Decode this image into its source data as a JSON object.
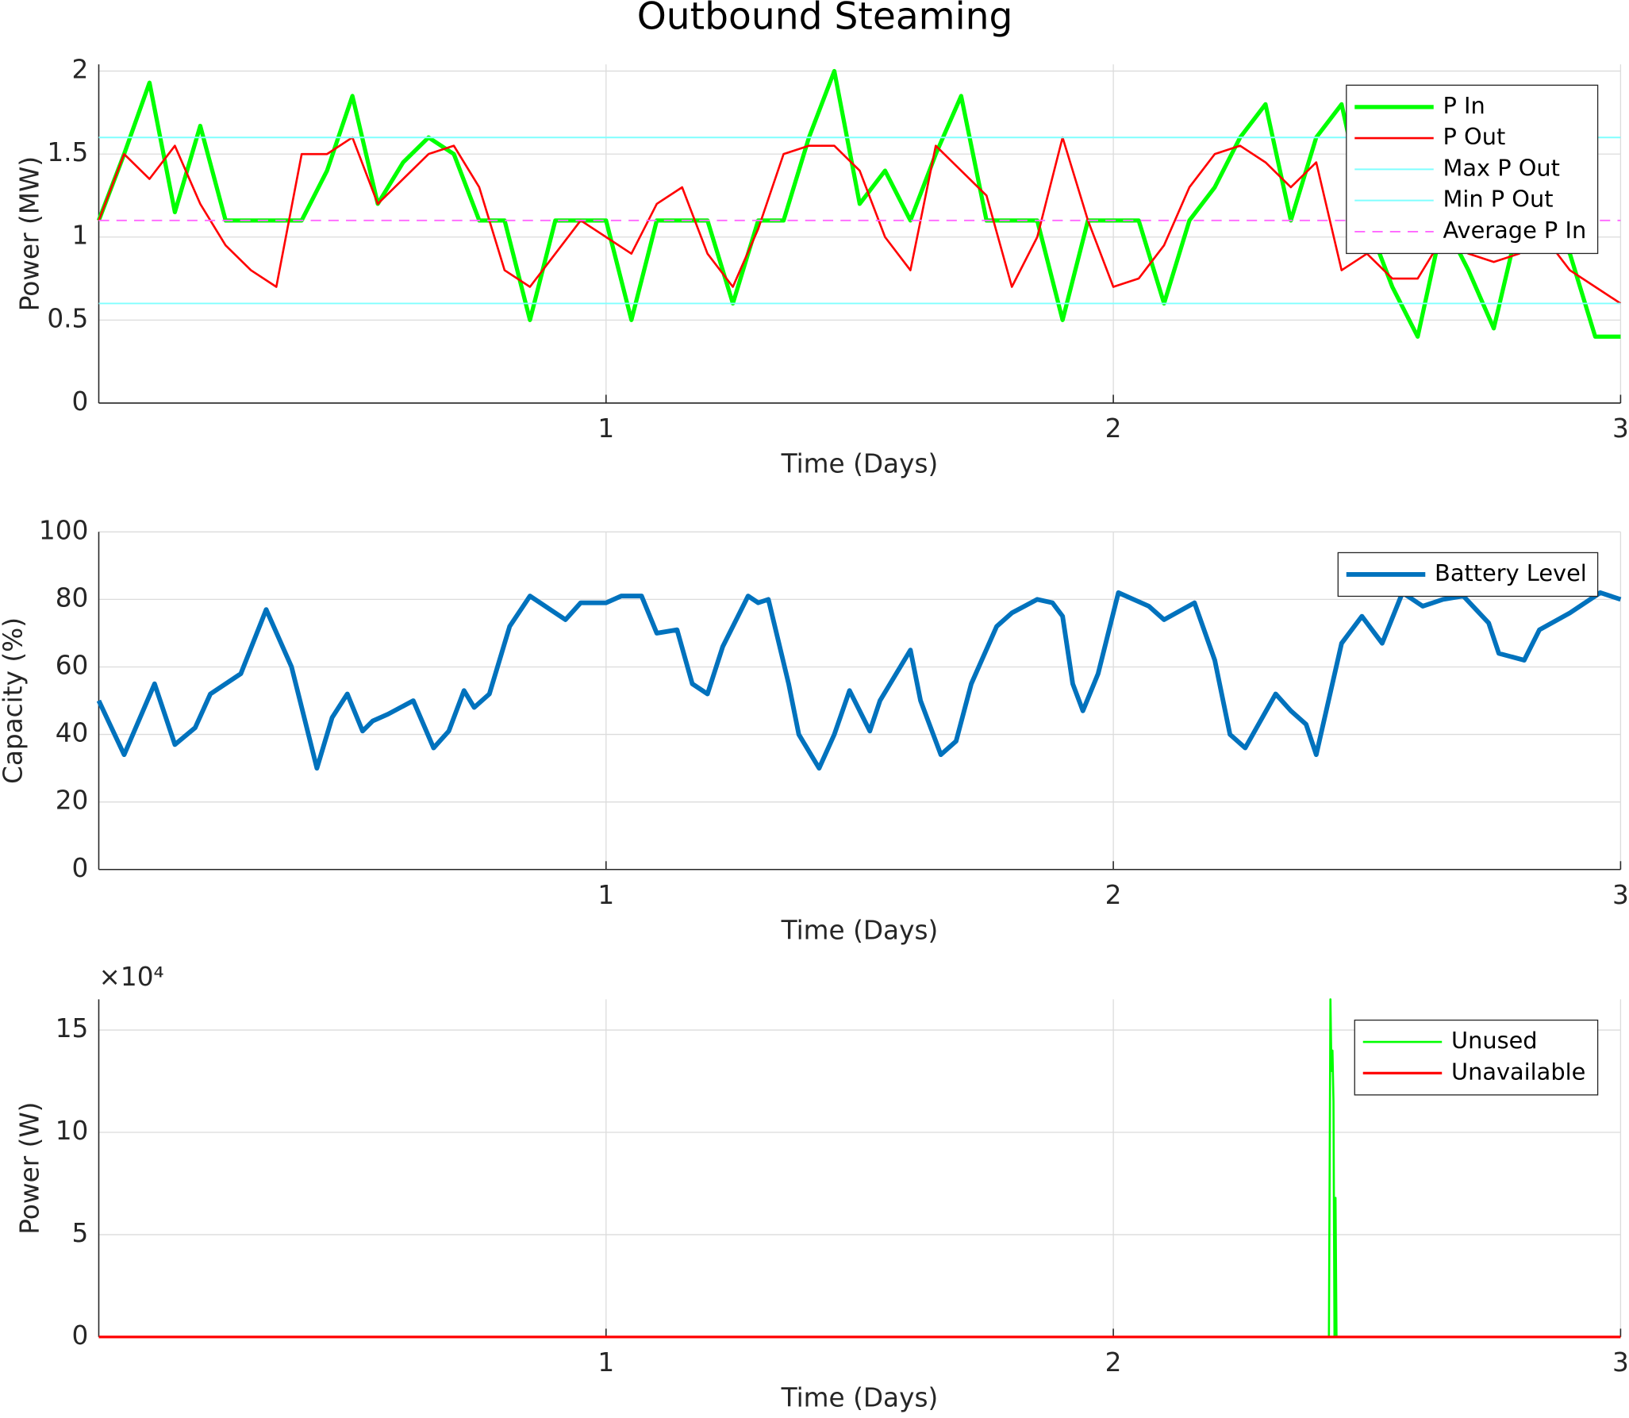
{
  "chart_data": [
    {
      "type": "line",
      "title": "Outbound Steaming",
      "xlabel": "Time (Days)",
      "ylabel": "Power (MW)",
      "xlim": [
        0,
        3
      ],
      "xticks": [
        1,
        2,
        3
      ],
      "ylim": [
        0,
        2.04
      ],
      "yticks": [
        0,
        0.5,
        1,
        1.5,
        2
      ],
      "grid": true,
      "legend": "northeast",
      "series": [
        {
          "name": "P In",
          "color": "#00ff00",
          "x": [
            0,
            0.05,
            0.1,
            0.15,
            0.2,
            0.25,
            0.3,
            0.35,
            0.4,
            0.45,
            0.5,
            0.55,
            0.6,
            0.65,
            0.7,
            0.75,
            0.8,
            0.85,
            0.9,
            0.95,
            1.0,
            1.05,
            1.1,
            1.15,
            1.2,
            1.25,
            1.3,
            1.35,
            1.4,
            1.45,
            1.5,
            1.55,
            1.6,
            1.65,
            1.7,
            1.75,
            1.8,
            1.85,
            1.9,
            1.95,
            2.0,
            2.05,
            2.1,
            2.15,
            2.2,
            2.25,
            2.3,
            2.35,
            2.4,
            2.45,
            2.5,
            2.55,
            2.6,
            2.65,
            2.7,
            2.75,
            2.8,
            2.85,
            2.9,
            2.95,
            3.0
          ],
          "values": [
            1.1,
            1.5,
            1.93,
            1.15,
            1.67,
            1.1,
            1.1,
            1.1,
            1.1,
            1.4,
            1.85,
            1.2,
            1.45,
            1.6,
            1.5,
            1.1,
            1.1,
            0.5,
            1.1,
            1.1,
            1.1,
            0.5,
            1.1,
            1.1,
            1.1,
            0.6,
            1.1,
            1.1,
            1.6,
            2.0,
            1.2,
            1.4,
            1.1,
            1.5,
            1.85,
            1.1,
            1.1,
            1.1,
            0.5,
            1.1,
            1.1,
            1.1,
            0.6,
            1.1,
            1.3,
            1.6,
            1.8,
            1.1,
            1.6,
            1.8,
            1.1,
            0.7,
            0.4,
            1.1,
            0.8,
            0.45,
            1.1,
            1.1,
            0.9,
            0.4,
            0.4
          ]
        },
        {
          "name": "P Out",
          "color": "#ff0000",
          "x": [
            0,
            0.05,
            0.1,
            0.15,
            0.2,
            0.25,
            0.3,
            0.35,
            0.4,
            0.45,
            0.5,
            0.55,
            0.6,
            0.65,
            0.7,
            0.75,
            0.8,
            0.85,
            0.9,
            0.95,
            1.0,
            1.05,
            1.1,
            1.15,
            1.2,
            1.25,
            1.3,
            1.35,
            1.4,
            1.45,
            1.5,
            1.55,
            1.6,
            1.65,
            1.7,
            1.75,
            1.8,
            1.85,
            1.9,
            1.95,
            2.0,
            2.05,
            2.1,
            2.15,
            2.2,
            2.25,
            2.3,
            2.35,
            2.4,
            2.45,
            2.5,
            2.55,
            2.6,
            2.65,
            2.7,
            2.75,
            2.8,
            2.85,
            2.9,
            2.95,
            3.0
          ],
          "values": [
            1.1,
            1.5,
            1.35,
            1.55,
            1.2,
            0.95,
            0.8,
            0.7,
            1.5,
            1.5,
            1.6,
            1.2,
            1.35,
            1.5,
            1.55,
            1.3,
            0.8,
            0.7,
            0.9,
            1.1,
            1.0,
            0.9,
            1.2,
            1.3,
            0.9,
            0.7,
            1.05,
            1.5,
            1.55,
            1.55,
            1.4,
            1.0,
            0.8,
            1.55,
            1.4,
            1.25,
            0.7,
            1.0,
            1.6,
            1.1,
            0.7,
            0.75,
            0.95,
            1.3,
            1.5,
            1.55,
            1.45,
            1.3,
            1.45,
            0.8,
            0.9,
            0.75,
            0.75,
            1.0,
            0.9,
            0.85,
            0.9,
            1.0,
            0.8,
            0.7,
            0.6
          ]
        },
        {
          "name": "Max P Out",
          "color": "#80ffff",
          "x": [
            0,
            3
          ],
          "values": [
            1.6,
            1.6
          ]
        },
        {
          "name": "Min P Out",
          "color": "#80ffff",
          "x": [
            0,
            3
          ],
          "values": [
            0.6,
            0.6
          ]
        },
        {
          "name": "Average P In",
          "color": "#ff66ff",
          "linestyle": "--",
          "x": [
            0,
            3
          ],
          "values": [
            1.1,
            1.1
          ]
        }
      ]
    },
    {
      "type": "line",
      "xlabel": "Time (Days)",
      "ylabel": "Capacity (%)",
      "xlim": [
        0,
        3
      ],
      "xticks": [
        1,
        2,
        3
      ],
      "ylim": [
        0,
        100
      ],
      "yticks": [
        0,
        20,
        40,
        60,
        80,
        100
      ],
      "grid": true,
      "legend": "northeast",
      "series": [
        {
          "name": "Battery Level",
          "color": "#0072bd",
          "x": [
            0,
            0.05,
            0.11,
            0.15,
            0.19,
            0.22,
            0.28,
            0.33,
            0.38,
            0.43,
            0.46,
            0.49,
            0.52,
            0.54,
            0.57,
            0.62,
            0.66,
            0.69,
            0.72,
            0.74,
            0.77,
            0.81,
            0.85,
            0.89,
            0.92,
            0.95,
            1.0,
            1.03,
            1.07,
            1.1,
            1.14,
            1.17,
            1.2,
            1.23,
            1.28,
            1.3,
            1.32,
            1.36,
            1.38,
            1.42,
            1.45,
            1.48,
            1.52,
            1.54,
            1.6,
            1.62,
            1.66,
            1.69,
            1.72,
            1.77,
            1.8,
            1.85,
            1.88,
            1.9,
            1.92,
            1.94,
            1.97,
            2.01,
            2.04,
            2.07,
            2.1,
            2.16,
            2.2,
            2.23,
            2.26,
            2.32,
            2.35,
            2.38,
            2.4,
            2.45,
            2.49,
            2.53,
            2.57,
            2.61,
            2.65,
            2.69,
            2.74,
            2.76,
            2.81,
            2.84,
            2.9,
            2.96,
            3.0
          ],
          "values": [
            50,
            34,
            55,
            37,
            42,
            52,
            58,
            77,
            60,
            30,
            45,
            52,
            41,
            44,
            46,
            50,
            36,
            41,
            53,
            48,
            52,
            72,
            81,
            77,
            74,
            79,
            79,
            81,
            81,
            70,
            71,
            55,
            52,
            66,
            81,
            79,
            80,
            55,
            40,
            30,
            40,
            53,
            41,
            50,
            65,
            50,
            34,
            38,
            55,
            72,
            76,
            80,
            79,
            75,
            55,
            47,
            58,
            82,
            80,
            78,
            74,
            79,
            62,
            40,
            36,
            52,
            47,
            43,
            34,
            67,
            75,
            67,
            82,
            78,
            80,
            81,
            73,
            64,
            62,
            71,
            76,
            82,
            80
          ]
        }
      ]
    },
    {
      "type": "line",
      "xlabel": "Time (Days)",
      "ylabel": "Power (W)",
      "exponent_label": "×10⁴",
      "xlim": [
        0,
        3
      ],
      "xticks": [
        1,
        2,
        3
      ],
      "ylim": [
        0,
        165000
      ],
      "yticks": [
        0,
        {
          "value": 50000,
          "label": "5"
        },
        {
          "value": 100000,
          "label": "10"
        },
        {
          "value": 150000,
          "label": "15"
        }
      ],
      "grid": true,
      "legend": "northeast",
      "series": [
        {
          "name": "Unused",
          "color": "#00ff00",
          "x": [
            0,
            2.425,
            2.428,
            2.43,
            2.432,
            2.434,
            2.436,
            2.438,
            2.44,
            3
          ],
          "values": [
            0,
            0,
            165000,
            130000,
            140000,
            115000,
            0,
            68000,
            0,
            0
          ]
        },
        {
          "name": "Unavailable",
          "color": "#ff0000",
          "x": [
            0,
            3
          ],
          "values": [
            0,
            0
          ]
        }
      ]
    }
  ]
}
